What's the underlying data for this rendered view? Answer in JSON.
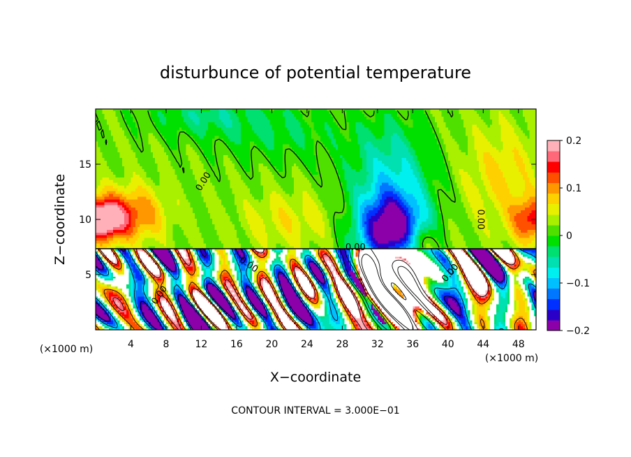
{
  "chart_data": {
    "type": "heatmap",
    "title": "disturbunce of potential temperature",
    "xlabel": "X−coordinate",
    "ylabel": "Z−coordinate",
    "x_unit_label": "(×1000 m)",
    "y_unit_label": "(×1000 m)",
    "xlim": [
      0,
      50
    ],
    "ylim": [
      0,
      20
    ],
    "x_ticks": [
      4,
      8,
      12,
      16,
      20,
      24,
      28,
      32,
      36,
      40,
      44,
      48
    ],
    "y_ticks": [
      5,
      10,
      15
    ],
    "colorbar": {
      "range": [
        -0.2,
        0.2
      ],
      "tick_values": [
        0.2,
        0.1,
        0,
        -0.1,
        -0.2
      ],
      "tick_labels": [
        "0.2",
        "0.1",
        "0",
        "−0.1",
        "−0.2"
      ]
    },
    "contour_labels": [
      {
        "text": "0.00",
        "x": 12.5,
        "z": 13.3,
        "angle": -58
      },
      {
        "text": "0.00",
        "x": 43.4,
        "z": 10.0,
        "angle": 90
      },
      {
        "text": "0.00",
        "x": 29.5,
        "z": 7.2,
        "angle": 0
      },
      {
        "text": "0.00",
        "x": 17.2,
        "z": 5.7,
        "angle": 35
      },
      {
        "text": "0.00",
        "x": 7.5,
        "z": 3.0,
        "angle": -55
      },
      {
        "text": "0.00",
        "x": 40.5,
        "z": 5.0,
        "angle": -50
      }
    ],
    "regions": [
      {
        "desc": "warm anomaly upper-left near z=10",
        "x": 1.5,
        "z": 10.0,
        "value": 0.17
      },
      {
        "desc": "warm anomaly upper-right near z=10",
        "x": 49.0,
        "z": 10.0,
        "value": 0.12
      },
      {
        "desc": "cold anomaly centered near x=34",
        "x": 34.0,
        "z": 9.5,
        "value": -0.17
      },
      {
        "desc": "weak cold at top center-left",
        "x": 12.0,
        "z": 19.0,
        "value": -0.06
      },
      {
        "desc": "saturated turbulent layer below z=7.5",
        "x": 25.0,
        "z": 4.0,
        "value": 0.3
      }
    ],
    "footer": "CONTOUR INTERVAL = 3.000E−01"
  },
  "palette": [
    "#8b00a8",
    "#2a00c8",
    "#0030ff",
    "#0077ff",
    "#00c0ff",
    "#00f0f0",
    "#00e0b0",
    "#00e070",
    "#00e000",
    "#50e000",
    "#a8f000",
    "#e8f000",
    "#ffd000",
    "#ff9800",
    "#ff5000",
    "#ff0000",
    "#ff6878",
    "#ffb0b8"
  ]
}
